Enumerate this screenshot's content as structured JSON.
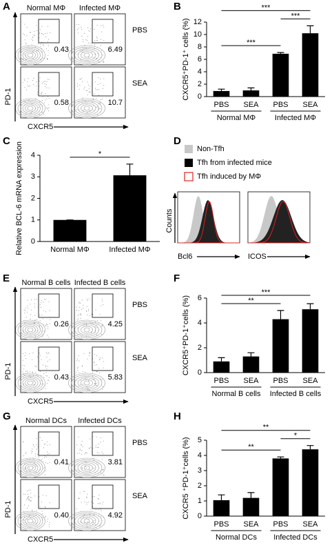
{
  "panel_labels": [
    "A",
    "B",
    "C",
    "D",
    "E",
    "F",
    "G",
    "H"
  ],
  "flow_panels": [
    {
      "col_labels": [
        "Normal MΦ",
        "Infected MΦ"
      ],
      "row_labels": [
        "PBS",
        "SEA"
      ],
      "gate_labels": [
        "0.43",
        "6.49",
        "0.58",
        "10.7"
      ],
      "y_label": "PD-1",
      "x_label": "CXCR5"
    },
    {
      "col_labels": [
        "Normal  B cells",
        "Infected  B cells"
      ],
      "row_labels": [
        "PBS",
        "SEA"
      ],
      "gate_labels": [
        "0.26",
        "4.25",
        "0.43",
        "5.83"
      ],
      "y_label": "PD-1",
      "x_label": "CXCR5"
    },
    {
      "col_labels": [
        "Normal  DCs",
        "Infected  DCs"
      ],
      "row_labels": [
        "PBS",
        "SEA"
      ],
      "gate_labels": [
        "0.41",
        "3.81",
        "0.40",
        "4.92"
      ],
      "y_label": "PD-1",
      "x_label": "CXCR5"
    }
  ],
  "histogram_panel": {
    "legend": [
      "Non-Tfh",
      "Tfh from infected mice",
      "Tfh induced by MΦ"
    ],
    "y_label": "Counts",
    "x_labels": [
      "Bcl6",
      "ICOS"
    ]
  },
  "chart_data": [
    {
      "type": "bar",
      "y_label": "CXCR5⁺PD-1⁺ cells (%)",
      "categories": [
        "PBS",
        "SEA",
        "PBS",
        "SEA"
      ],
      "groups": [
        "Normal  MΦ",
        "Infected  MΦ"
      ],
      "values": [
        0.9,
        1.0,
        6.9,
        10.2
      ],
      "errors": [
        0.3,
        0.4,
        0.2,
        1.2
      ],
      "color": "#000000",
      "ylim": [
        0,
        12
      ],
      "yticks": [
        0,
        2,
        4,
        6,
        8,
        10,
        12
      ],
      "significance": [
        {
          "from": 0,
          "to": 3,
          "label": "***"
        },
        {
          "from": 0,
          "to": 2,
          "label": "***"
        },
        {
          "from": 2,
          "to": 3,
          "label": "***"
        }
      ]
    },
    {
      "type": "bar",
      "y_label": "Relative BCL-6 mRNA expression",
      "categories": [
        "Normal MΦ",
        "Infected MΦ"
      ],
      "values": [
        1,
        3.07
      ],
      "errors": [
        0,
        0.52
      ],
      "color": "#000000",
      "ylim": [
        0,
        4
      ],
      "yticks": [
        0,
        1,
        2,
        3,
        4
      ],
      "significance": [
        {
          "from": 0,
          "to": 1,
          "label": "*"
        }
      ]
    },
    {
      "type": "bar",
      "y_label": "CXCR5⁺PD-1⁺cells (%)",
      "categories": [
        "PBS",
        "SEA",
        "PBS",
        "SEA"
      ],
      "groups": [
        "Normal  B cells",
        "Infected  B cells"
      ],
      "values": [
        0.9,
        1.3,
        4.3,
        5.1
      ],
      "errors": [
        0.3,
        0.3,
        0.7,
        0.45
      ],
      "color": "#000000",
      "ylim": [
        0,
        6
      ],
      "yticks": [
        0,
        2,
        4,
        6
      ],
      "significance": [
        {
          "from": 0,
          "to": 3,
          "label": "***"
        },
        {
          "from": 0,
          "to": 2,
          "label": "**"
        }
      ]
    },
    {
      "type": "bar",
      "y_label": "CXCR5 ⁺PD-1⁺cells (%)",
      "categories": [
        "PBS",
        "SEA",
        "PBS",
        "SEA"
      ],
      "groups": [
        "Normal  DCs",
        "Infected  DCs"
      ],
      "values": [
        1.05,
        1.2,
        3.8,
        4.4
      ],
      "errors": [
        0.35,
        0.35,
        0.1,
        0.25
      ],
      "color": "#000000",
      "ylim": [
        0,
        5
      ],
      "yticks": [
        0,
        1,
        2,
        3,
        4,
        5
      ],
      "significance": [
        {
          "from": 0,
          "to": 3,
          "label": "**"
        },
        {
          "from": 0,
          "to": 2,
          "label": "**"
        },
        {
          "from": 2,
          "to": 3,
          "label": "*"
        }
      ]
    }
  ]
}
